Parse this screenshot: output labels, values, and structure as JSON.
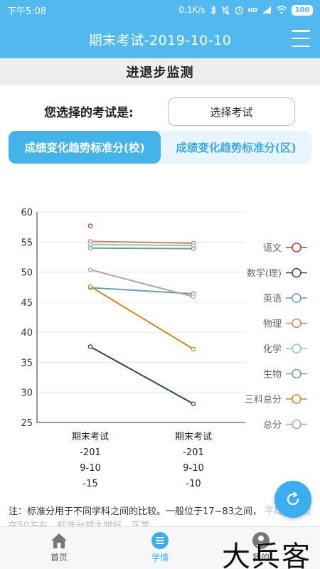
{
  "status_bar": {
    "time": "下午5:08",
    "network_speed": "0.1K/s",
    "battery": "100",
    "icons": [
      "bluetooth-icon",
      "mute-icon",
      "alarm-icon",
      "hd-icon",
      "signal-icon",
      "wifi-icon"
    ]
  },
  "header": {
    "title": "期末考试-2019-10-10",
    "menu_icon": "hamburger-menu-icon"
  },
  "section_title": "进退步监测",
  "exam_select": {
    "label": "您选择的考试是:",
    "button": "选择考试"
  },
  "tabs": [
    {
      "label": "成绩变化趋势标准分(校)",
      "active": true
    },
    {
      "label": "成绩变化趋势标准分(区)",
      "active": false
    }
  ],
  "colors": {
    "header_blue": "#52b9ef",
    "tab_active": "#44b3ea",
    "fab": "#3aaef0"
  },
  "chart_data": {
    "type": "line",
    "categories": [
      [
        "期末考试",
        "-201",
        "9-10",
        "-15"
      ],
      [
        "期末考试",
        "-201",
        "9-10",
        "-10"
      ]
    ],
    "ylim": [
      25,
      60
    ],
    "yticks": [
      25,
      30,
      35,
      40,
      45,
      50,
      55,
      60
    ],
    "grid": true,
    "legend_position": "right",
    "series": [
      {
        "name": "语文",
        "color": "#c23531",
        "values": [
          57.7,
          null
        ]
      },
      {
        "name": "数学(理)",
        "color": "#2f4554",
        "values": [
          37.6,
          28.1
        ]
      },
      {
        "name": "英语",
        "color": "#61a0a8",
        "values": [
          47.4,
          46.4
        ]
      },
      {
        "name": "物理",
        "color": "#d48265",
        "values": [
          55.1,
          54.8
        ]
      },
      {
        "name": "化学",
        "color": "#91c7ae",
        "values": [
          54.6,
          54.4
        ]
      },
      {
        "name": "生物",
        "color": "#749f83",
        "values": [
          54.0,
          53.9
        ]
      },
      {
        "name": "三科总分",
        "color": "#ca8622",
        "values": [
          47.6,
          37.2
        ]
      },
      {
        "name": "总分",
        "color": "#bda29a",
        "values": [
          50.4,
          45.9
        ]
      }
    ]
  },
  "note": {
    "text": "注：标准分用于不同学科之间的比较。一般位于17~83之间，",
    "more": "平均在成绩在50左右。标准分越大越好，正常..."
  },
  "fab_icon": "refresh-icon",
  "bottom_nav": [
    {
      "label": "首页",
      "icon": "home-icon",
      "active": false
    },
    {
      "label": "学情",
      "icon": "list-icon",
      "active": true
    },
    {
      "label": "我的",
      "icon": "user-icon",
      "active": false
    }
  ],
  "watermark": "大兵客"
}
